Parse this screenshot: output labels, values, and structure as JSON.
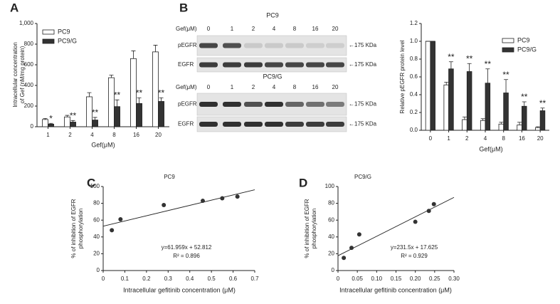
{
  "panel_labels": [
    "A",
    "B",
    "C",
    "D"
  ],
  "blot": {
    "panels": [
      {
        "title": "PC9",
        "gef_label": "Gef(μM)",
        "lanes": [
          "0",
          "1",
          "2",
          "4",
          "8",
          "16",
          "20"
        ],
        "rows": [
          {
            "name": "pEGFR",
            "size": "←175 KDa"
          },
          {
            "name": "EGFR",
            "size": "←175 KDa"
          }
        ]
      },
      {
        "title": "PC9/G",
        "gef_label": "Gef(μM)",
        "lanes": [
          "0",
          "1",
          "2",
          "4",
          "8",
          "16",
          "20"
        ],
        "rows": [
          {
            "name": "pEGFR",
            "size": "←175 KDa"
          },
          {
            "name": "EGFR",
            "size": "←175 KDa"
          }
        ]
      }
    ]
  },
  "chart_data": [
    {
      "type": "bar",
      "xlabel": "Gef(μM)",
      "ylabel": [
        "Intracellular concentration",
        "of Gef (nM/mg protein)"
      ],
      "categories": [
        "1",
        "2",
        "4",
        "8",
        "16",
        "20"
      ],
      "ylim": [
        0,
        1000
      ],
      "yticks": [
        0,
        200,
        400,
        600,
        800,
        {
          "value": 1000,
          "label": "1,000"
        }
      ],
      "legend": "upper-left",
      "series": [
        {
          "name": "PC9",
          "color": "#ffffff",
          "values": [
            70,
            95,
            290,
            475,
            660,
            725
          ],
          "errors": [
            10,
            15,
            40,
            25,
            75,
            65
          ]
        },
        {
          "name": "PC9/G",
          "color": "#333333",
          "values": [
            25,
            45,
            65,
            195,
            225,
            245
          ],
          "errors": [
            8,
            15,
            25,
            65,
            55,
            35
          ],
          "significance": [
            "*",
            "**",
            "**",
            "**",
            "**",
            "**"
          ]
        }
      ]
    },
    {
      "type": "bar",
      "xlabel": "Gef(μM)",
      "ylabel": [
        "Relative pEGFR protein level"
      ],
      "categories": [
        "0",
        "1",
        "2",
        "4",
        "8",
        "16",
        "20"
      ],
      "ylim": [
        0,
        1.2
      ],
      "yticks": [
        {
          "value": 0,
          "label": "0.0"
        },
        0.2,
        0.4,
        0.6,
        0.8,
        {
          "value": 1,
          "label": "1.0"
        },
        1.2
      ],
      "legend": "upper-right",
      "series": [
        {
          "name": "PC9",
          "color": "#ffffff",
          "values": [
            1.0,
            0.51,
            0.12,
            0.11,
            0.07,
            0.06,
            0.03
          ],
          "errors": [
            0,
            0.03,
            0.03,
            0.02,
            0.02,
            0.03,
            0.01
          ]
        },
        {
          "name": "PC9/G",
          "color": "#333333",
          "values": [
            1.0,
            0.69,
            0.66,
            0.53,
            0.42,
            0.27,
            0.22
          ],
          "errors": [
            0,
            0.08,
            0.09,
            0.16,
            0.15,
            0.05,
            0.03
          ],
          "significance": [
            null,
            "**",
            "**",
            "**",
            "**",
            "**",
            "**"
          ]
        }
      ]
    },
    {
      "type": "scatter",
      "title": "PC9",
      "xlabel": "Intracellular gefitinib concentration (μM)",
      "ylabel": [
        "% of inhibition of EGFR",
        "phosphorylation"
      ],
      "x": [
        0.04,
        0.08,
        0.28,
        0.46,
        0.55,
        0.62
      ],
      "values": [
        48,
        61,
        78,
        83,
        86,
        88
      ],
      "color": "#333333",
      "xlim": [
        0,
        0.7
      ],
      "xticks": [
        0,
        0.1,
        0.2,
        0.3,
        0.4,
        0.5,
        0.6,
        0.7
      ],
      "ylim": [
        0,
        100
      ],
      "yticks": [
        0,
        20,
        40,
        60,
        80,
        100
      ],
      "fit": {
        "slope": 61.959,
        "intercept": 52.812,
        "equation": "y=61.959x + 52.812",
        "r2_label": "R² = 0.896"
      }
    },
    {
      "type": "scatter",
      "title": "PC9/G",
      "xlabel": "Intracellular gefitinib concentration (μM)",
      "ylabel": [
        "% of inhibition of EGFR",
        "phosphorylation"
      ],
      "x": [
        0.015,
        0.035,
        0.055,
        0.2,
        0.235,
        0.248
      ],
      "values": [
        15,
        27,
        43,
        58,
        71,
        79
      ],
      "color": "#333333",
      "xlim": [
        0,
        0.3
      ],
      "xticks": [
        0,
        0.05,
        {
          "value": 0.1,
          "label": "0.10"
        },
        0.15,
        {
          "value": 0.2,
          "label": "0.20"
        },
        0.25,
        {
          "value": 0.3,
          "label": "0.30"
        }
      ],
      "ylim": [
        0,
        100
      ],
      "yticks": [
        0,
        20,
        40,
        60,
        80,
        100
      ],
      "fit": {
        "slope": 231.5,
        "intercept": 17.625,
        "equation": "y=231.5x + 17.625",
        "r2_label": "R² = 0.929"
      }
    }
  ]
}
